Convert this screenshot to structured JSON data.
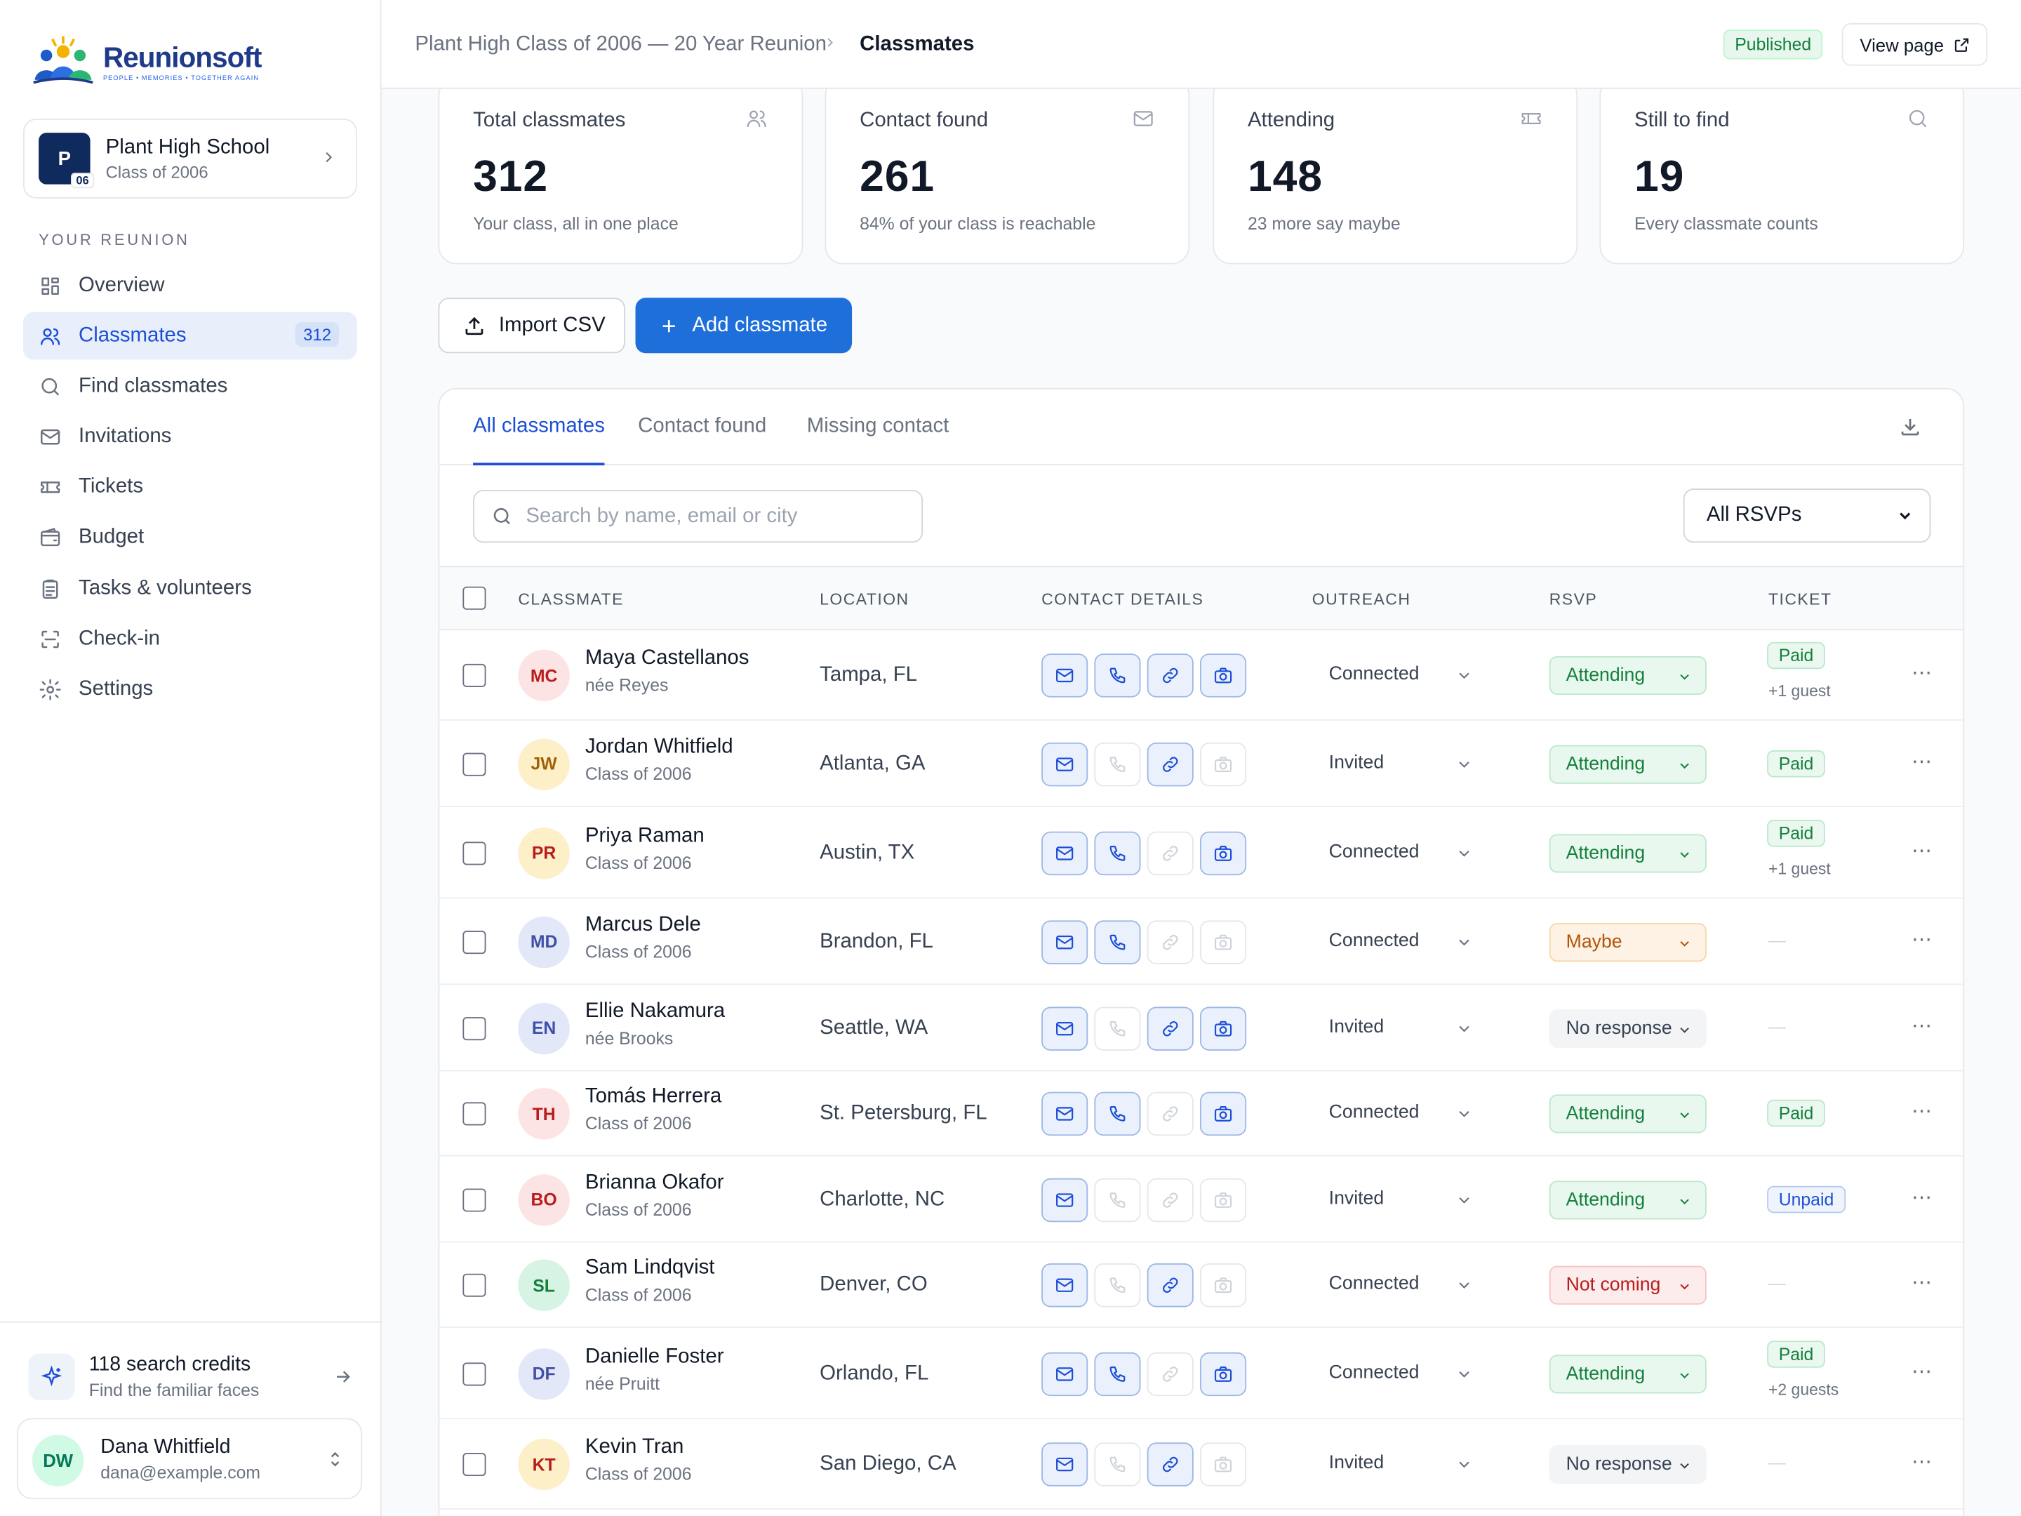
{
  "brand": {
    "name": "Reunionsoft",
    "tagline": "PEOPLE • MEMORIES • TOGETHER AGAIN"
  },
  "school": {
    "badge": "P",
    "year_badge": "06",
    "name": "Plant High School",
    "class": "Class of 2006"
  },
  "sidebar": {
    "section_label": "YOUR REUNION",
    "items": [
      {
        "label": "Overview",
        "icon": "grid-icon"
      },
      {
        "label": "Classmates",
        "icon": "users-icon",
        "count": "312",
        "active": true
      },
      {
        "label": "Find classmates",
        "icon": "search-icon"
      },
      {
        "label": "Invitations",
        "icon": "mail-icon"
      },
      {
        "label": "Tickets",
        "icon": "ticket-icon"
      },
      {
        "label": "Budget",
        "icon": "wallet-icon"
      },
      {
        "label": "Tasks & volunteers",
        "icon": "clipboard-icon"
      },
      {
        "label": "Check-in",
        "icon": "scan-icon"
      },
      {
        "label": "Settings",
        "icon": "gear-icon"
      }
    ],
    "credits": {
      "title": "118 search credits",
      "subtitle": "Find the familiar faces"
    },
    "user": {
      "initials": "DW",
      "name": "Dana Whitfield",
      "email": "dana@example.com"
    }
  },
  "header": {
    "breadcrumb_parent": "Plant High Class of 2006 — 20 Year Reunion",
    "breadcrumb_current": "Classmates",
    "status_badge": "Published",
    "view_page_label": "View page"
  },
  "stats": [
    {
      "label": "Total classmates",
      "value": "312",
      "sub": "Your class, all in one place",
      "icon": "users-icon"
    },
    {
      "label": "Contact found",
      "value": "261",
      "sub": "84% of your class is reachable",
      "icon": "mail-icon"
    },
    {
      "label": "Attending",
      "value": "148",
      "sub": "23 more say maybe",
      "icon": "ticket-icon"
    },
    {
      "label": "Still to find",
      "value": "19",
      "sub": "Every classmate counts",
      "icon": "search-icon"
    }
  ],
  "actions": {
    "import_label": "Import CSV",
    "add_label": "Add classmate"
  },
  "tabs": [
    "All classmates",
    "Contact found",
    "Missing contact"
  ],
  "search": {
    "placeholder": "Search by name, email or city",
    "value": ""
  },
  "rsvp_filter": {
    "selected": "All RSVPs"
  },
  "columns": [
    "CLASSMATE",
    "LOCATION",
    "CONTACT DETAILS",
    "OUTREACH",
    "RSVP",
    "TICKET"
  ],
  "colors": {
    "accent": "#1f6fdb",
    "attending": "#15803d",
    "maybe": "#b45309",
    "not_coming": "#b91c1c"
  },
  "rows": [
    {
      "initials": "MC",
      "name": "Maya Castellanos",
      "sub": "née Reyes",
      "location": "Tampa, FL",
      "contacts": [
        true,
        true,
        true,
        true
      ],
      "outreach": "Connected",
      "rsvp": "Attending",
      "rsvp_kind": "attending",
      "ticket": "Paid",
      "ticket_kind": "paid",
      "guests": "+1 guest",
      "av_bg": "#fde4e4",
      "av_fg": "#b91c1c"
    },
    {
      "initials": "JW",
      "name": "Jordan Whitfield",
      "sub": "Class of 2006",
      "location": "Atlanta, GA",
      "contacts": [
        true,
        false,
        true,
        false
      ],
      "outreach": "Invited",
      "rsvp": "Attending",
      "rsvp_kind": "attending",
      "ticket": "Paid",
      "ticket_kind": "paid",
      "guests": "",
      "av_bg": "#fdf0c8",
      "av_fg": "#a16207"
    },
    {
      "initials": "PR",
      "name": "Priya Raman",
      "sub": "Class of 2006",
      "location": "Austin, TX",
      "contacts": [
        true,
        true,
        false,
        true
      ],
      "outreach": "Connected",
      "rsvp": "Attending",
      "rsvp_kind": "attending",
      "ticket": "Paid",
      "ticket_kind": "paid",
      "guests": "+1 guest",
      "av_bg": "#fdf0c8",
      "av_fg": "#b91c1c"
    },
    {
      "initials": "MD",
      "name": "Marcus Dele",
      "sub": "Class of 2006",
      "location": "Brandon, FL",
      "contacts": [
        true,
        true,
        false,
        false
      ],
      "outreach": "Connected",
      "rsvp": "Maybe",
      "rsvp_kind": "maybe",
      "ticket": "—",
      "ticket_kind": "none",
      "guests": "",
      "av_bg": "#e3e8f8",
      "av_fg": "#3f4fa8"
    },
    {
      "initials": "EN",
      "name": "Ellie Nakamura",
      "sub": "née Brooks",
      "location": "Seattle, WA",
      "contacts": [
        true,
        false,
        true,
        true
      ],
      "outreach": "Invited",
      "rsvp": "No response",
      "rsvp_kind": "noresp",
      "ticket": "—",
      "ticket_kind": "none",
      "guests": "",
      "av_bg": "#e3e8f8",
      "av_fg": "#3f4fa8"
    },
    {
      "initials": "TH",
      "name": "Tomás Herrera",
      "sub": "Class of 2006",
      "location": "St. Petersburg, FL",
      "contacts": [
        true,
        true,
        false,
        true
      ],
      "outreach": "Connected",
      "rsvp": "Attending",
      "rsvp_kind": "attending",
      "ticket": "Paid",
      "ticket_kind": "paid",
      "guests": "",
      "av_bg": "#fde4e4",
      "av_fg": "#b91c1c"
    },
    {
      "initials": "BO",
      "name": "Brianna Okafor",
      "sub": "Class of 2006",
      "location": "Charlotte, NC",
      "contacts": [
        true,
        false,
        false,
        false
      ],
      "outreach": "Invited",
      "rsvp": "Attending",
      "rsvp_kind": "attending",
      "ticket": "Unpaid",
      "ticket_kind": "unpaid",
      "guests": "",
      "av_bg": "#fde4e4",
      "av_fg": "#b91c1c"
    },
    {
      "initials": "SL",
      "name": "Sam Lindqvist",
      "sub": "Class of 2006",
      "location": "Denver, CO",
      "contacts": [
        true,
        false,
        true,
        false
      ],
      "outreach": "Connected",
      "rsvp": "Not coming",
      "rsvp_kind": "notcoming",
      "ticket": "—",
      "ticket_kind": "none",
      "guests": "",
      "av_bg": "#d7f3e3",
      "av_fg": "#15803d"
    },
    {
      "initials": "DF",
      "name": "Danielle Foster",
      "sub": "née Pruitt",
      "location": "Orlando, FL",
      "contacts": [
        true,
        true,
        false,
        true
      ],
      "outreach": "Connected",
      "rsvp": "Attending",
      "rsvp_kind": "attending",
      "ticket": "Paid",
      "ticket_kind": "paid",
      "guests": "+2 guests",
      "av_bg": "#e3e8f8",
      "av_fg": "#3f4fa8"
    },
    {
      "initials": "KT",
      "name": "Kevin Tran",
      "sub": "Class of 2006",
      "location": "San Diego, CA",
      "contacts": [
        true,
        false,
        true,
        false
      ],
      "outreach": "Invited",
      "rsvp": "No response",
      "rsvp_kind": "noresp",
      "ticket": "—",
      "ticket_kind": "none",
      "guests": "",
      "av_bg": "#fdf0c8",
      "av_fg": "#b91c1c"
    }
  ]
}
